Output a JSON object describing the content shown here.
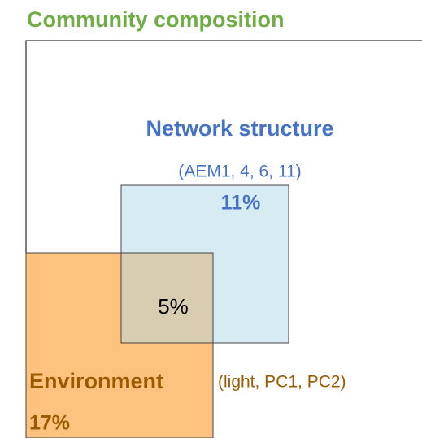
{
  "title": "Community composition",
  "network": {
    "label": "Network structure",
    "detail": "(AEM1, 4, 6, 11)",
    "share": "11%"
  },
  "shared": {
    "share": "5%"
  },
  "environment": {
    "label": "Environment",
    "detail": "(light, PC1, PC2)",
    "share": "17%"
  }
}
